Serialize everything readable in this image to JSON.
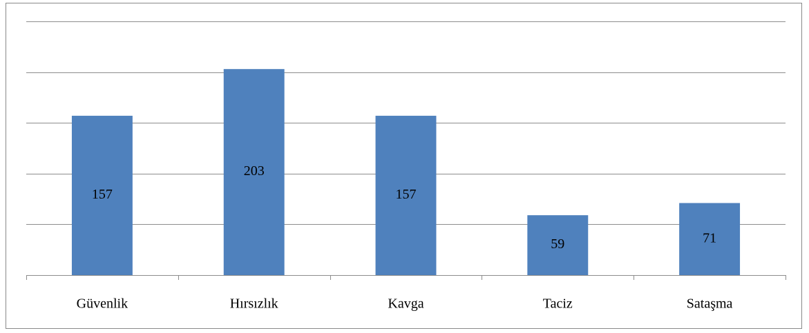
{
  "chart_data": {
    "type": "bar",
    "categories": [
      "Güvenlik",
      "Hırsızlık",
      "Kavga",
      "Taciz",
      "Sataşma"
    ],
    "values": [
      157,
      203,
      157,
      59,
      71
    ],
    "color": "#4f81bd",
    "ylim": [
      0,
      250
    ],
    "yticks": [
      0,
      50,
      100,
      150,
      200,
      250
    ],
    "grid": true
  }
}
